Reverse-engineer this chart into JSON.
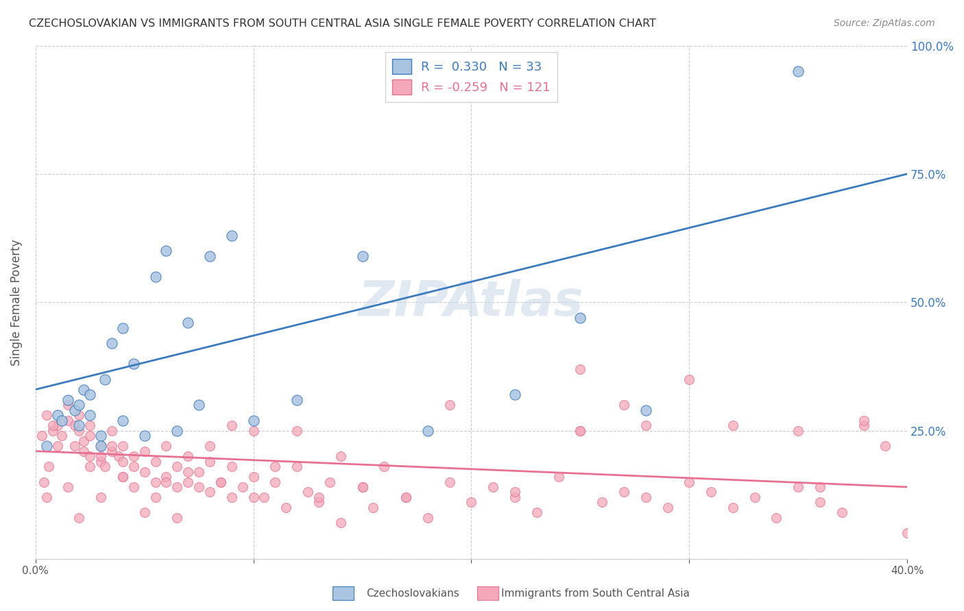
{
  "title": "CZECHOSLOVAKIAN VS IMMIGRANTS FROM SOUTH CENTRAL ASIA SINGLE FEMALE POVERTY CORRELATION CHART",
  "source": "Source: ZipAtlas.com",
  "xlabel_bottom": "",
  "ylabel": "Single Female Poverty",
  "x_ticks": [
    0.0,
    0.1,
    0.2,
    0.3,
    0.4
  ],
  "x_tick_labels": [
    "0.0%",
    "",
    "",
    "",
    "40.0%"
  ],
  "y_ticks": [
    0.0,
    0.25,
    0.5,
    0.75,
    1.0
  ],
  "y_tick_labels": [
    "",
    "25.0%",
    "50.0%",
    "75.0%",
    "100.0%"
  ],
  "xlim": [
    0.0,
    0.4
  ],
  "ylim": [
    0.0,
    1.0
  ],
  "blue_R": 0.33,
  "blue_N": 33,
  "pink_R": -0.259,
  "pink_N": 121,
  "blue_color": "#a8c4e0",
  "pink_color": "#f4a8b8",
  "blue_line_color": "#3a7abf",
  "pink_line_color": "#e87090",
  "legend_label_blue": "Czechoslovakians",
  "legend_label_pink": "Immigrants from South Central Asia",
  "watermark": "ZIPAtlas",
  "background_color": "#ffffff",
  "grid_color": "#cccccc",
  "blue_scatter_x": [
    0.005,
    0.01,
    0.012,
    0.015,
    0.018,
    0.02,
    0.02,
    0.022,
    0.025,
    0.025,
    0.03,
    0.03,
    0.032,
    0.035,
    0.04,
    0.04,
    0.045,
    0.05,
    0.055,
    0.06,
    0.065,
    0.07,
    0.075,
    0.08,
    0.09,
    0.1,
    0.12,
    0.15,
    0.18,
    0.22,
    0.25,
    0.28,
    0.35
  ],
  "blue_scatter_y": [
    0.22,
    0.28,
    0.27,
    0.31,
    0.29,
    0.26,
    0.3,
    0.33,
    0.28,
    0.32,
    0.24,
    0.22,
    0.35,
    0.42,
    0.27,
    0.45,
    0.38,
    0.24,
    0.55,
    0.6,
    0.25,
    0.46,
    0.3,
    0.59,
    0.63,
    0.27,
    0.31,
    0.59,
    0.25,
    0.32,
    0.47,
    0.29,
    0.95
  ],
  "pink_scatter_x": [
    0.005,
    0.008,
    0.01,
    0.012,
    0.015,
    0.015,
    0.018,
    0.018,
    0.02,
    0.02,
    0.022,
    0.022,
    0.025,
    0.025,
    0.025,
    0.03,
    0.03,
    0.03,
    0.032,
    0.035,
    0.035,
    0.038,
    0.04,
    0.04,
    0.04,
    0.045,
    0.045,
    0.05,
    0.05,
    0.055,
    0.055,
    0.06,
    0.06,
    0.065,
    0.065,
    0.07,
    0.07,
    0.075,
    0.08,
    0.08,
    0.085,
    0.09,
    0.09,
    0.095,
    0.1,
    0.1,
    0.105,
    0.11,
    0.115,
    0.12,
    0.125,
    0.13,
    0.135,
    0.14,
    0.15,
    0.155,
    0.16,
    0.17,
    0.18,
    0.19,
    0.2,
    0.21,
    0.22,
    0.23,
    0.24,
    0.25,
    0.26,
    0.27,
    0.28,
    0.29,
    0.3,
    0.31,
    0.32,
    0.33,
    0.34,
    0.35,
    0.36,
    0.37,
    0.38,
    0.39,
    0.4,
    0.25,
    0.27,
    0.3,
    0.35,
    0.38,
    0.36,
    0.32,
    0.28,
    0.25,
    0.22,
    0.19,
    0.17,
    0.15,
    0.14,
    0.13,
    0.12,
    0.11,
    0.1,
    0.09,
    0.085,
    0.08,
    0.075,
    0.07,
    0.065,
    0.06,
    0.055,
    0.05,
    0.045,
    0.04,
    0.035,
    0.03,
    0.025,
    0.02,
    0.015,
    0.01,
    0.008,
    0.006,
    0.005,
    0.004,
    0.003
  ],
  "pink_scatter_y": [
    0.28,
    0.25,
    0.26,
    0.24,
    0.27,
    0.3,
    0.22,
    0.26,
    0.28,
    0.25,
    0.23,
    0.21,
    0.24,
    0.2,
    0.26,
    0.19,
    0.22,
    0.2,
    0.18,
    0.21,
    0.25,
    0.2,
    0.16,
    0.22,
    0.19,
    0.18,
    0.14,
    0.17,
    0.21,
    0.15,
    0.19,
    0.16,
    0.22,
    0.14,
    0.18,
    0.15,
    0.2,
    0.17,
    0.13,
    0.19,
    0.15,
    0.12,
    0.18,
    0.14,
    0.25,
    0.16,
    0.12,
    0.15,
    0.1,
    0.18,
    0.13,
    0.11,
    0.15,
    0.2,
    0.14,
    0.1,
    0.18,
    0.12,
    0.08,
    0.15,
    0.11,
    0.14,
    0.12,
    0.09,
    0.16,
    0.25,
    0.11,
    0.13,
    0.26,
    0.1,
    0.15,
    0.13,
    0.1,
    0.12,
    0.08,
    0.14,
    0.11,
    0.09,
    0.26,
    0.22,
    0.05,
    0.37,
    0.3,
    0.35,
    0.25,
    0.27,
    0.14,
    0.26,
    0.12,
    0.25,
    0.13,
    0.3,
    0.12,
    0.14,
    0.07,
    0.12,
    0.25,
    0.18,
    0.12,
    0.26,
    0.15,
    0.22,
    0.14,
    0.17,
    0.08,
    0.15,
    0.12,
    0.09,
    0.2,
    0.16,
    0.22,
    0.12,
    0.18,
    0.08,
    0.14,
    0.22,
    0.26,
    0.18,
    0.12,
    0.15,
    0.24
  ]
}
